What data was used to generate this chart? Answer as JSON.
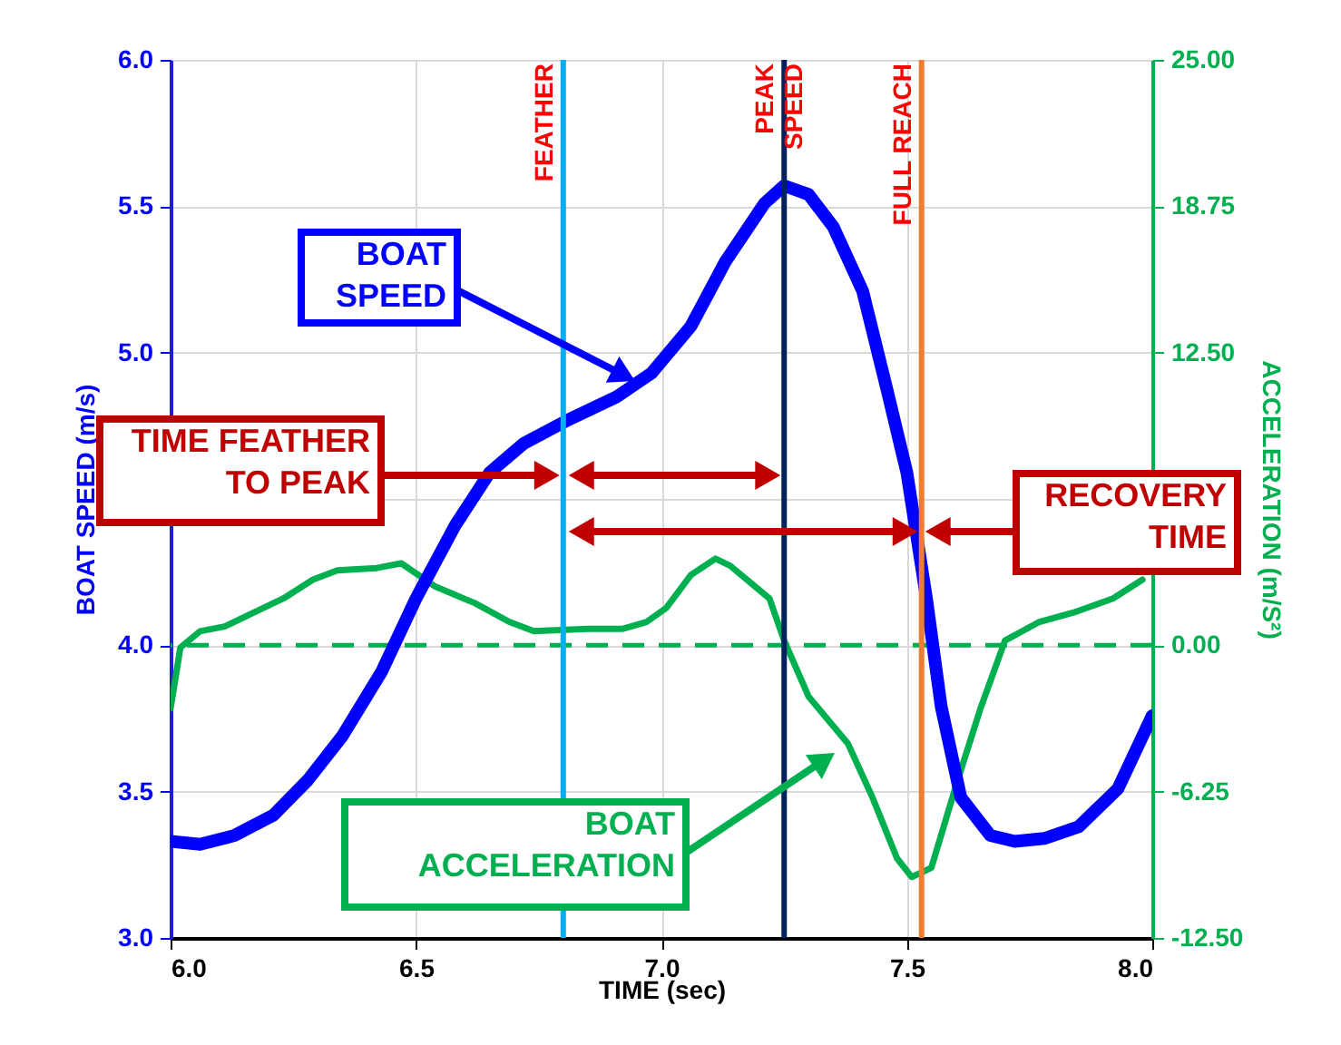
{
  "chart_data": {
    "type": "line",
    "xlabel": "TIME (sec)",
    "ylabel": "BOAT SPEED (m/s)",
    "y2label": "ACCELERATION  (m/S²)",
    "xlim": [
      6,
      8
    ],
    "xticks": [
      {
        "value": 6,
        "label": "6.0"
      },
      {
        "value": 6.5,
        "label": "6.5"
      },
      {
        "value": 7,
        "label": "7.0"
      },
      {
        "value": 7.5,
        "label": "7.5"
      },
      {
        "value": 8,
        "label": "8.0"
      }
    ],
    "ylim": [
      3,
      6
    ],
    "yticks": [
      {
        "value": 3,
        "label": "3.0"
      },
      {
        "value": 3.5,
        "label": "3.5"
      },
      {
        "value": 4,
        "label": "4.0"
      },
      {
        "value": 4.5,
        "label": null
      },
      {
        "value": 5,
        "label": "5.0"
      },
      {
        "value": 5.5,
        "label": "5.5"
      },
      {
        "value": 6,
        "label": "6.0"
      }
    ],
    "y2lim": [
      -12.5,
      25
    ],
    "y2ticks": [
      {
        "value": -12.5,
        "label": "-12.50"
      },
      {
        "value": -6.25,
        "label": "-6.25"
      },
      {
        "value": 0,
        "label": "0.00"
      },
      {
        "value": 6.25,
        "label": null
      },
      {
        "value": 12.5,
        "label": "12.50"
      },
      {
        "value": 18.75,
        "label": "18.75"
      },
      {
        "value": 25,
        "label": "25.00"
      }
    ],
    "grid": true,
    "series": [
      {
        "name": "BOAT SPEED",
        "color": "#0000ff",
        "x": [
          6.0,
          6.06,
          6.13,
          6.21,
          6.28,
          6.35,
          6.43,
          6.5,
          6.58,
          6.65,
          6.72,
          6.81,
          6.91,
          6.98,
          7.06,
          7.13,
          7.21,
          7.25,
          7.3,
          7.35,
          7.41,
          7.46,
          7.5,
          7.54,
          7.57,
          7.61,
          7.67,
          7.72,
          7.78,
          7.85,
          7.93,
          8.0
        ],
        "values": [
          3.33,
          3.32,
          3.35,
          3.42,
          3.54,
          3.69,
          3.91,
          4.16,
          4.41,
          4.59,
          4.69,
          4.77,
          4.85,
          4.93,
          5.09,
          5.31,
          5.51,
          5.57,
          5.54,
          5.43,
          5.21,
          4.87,
          4.59,
          4.16,
          3.79,
          3.48,
          3.35,
          3.33,
          3.34,
          3.38,
          3.51,
          3.76
        ]
      },
      {
        "name": "BOAT ACCELERATION",
        "color": "#00b050",
        "axis": "y2",
        "x": [
          6.0,
          6.02,
          6.06,
          6.11,
          6.17,
          6.23,
          6.29,
          6.34,
          6.42,
          6.47,
          6.54,
          6.62,
          6.69,
          6.74,
          6.85,
          6.92,
          6.97,
          7.01,
          7.06,
          7.11,
          7.14,
          7.22,
          7.25,
          7.3,
          7.38,
          7.43,
          7.48,
          7.51,
          7.55,
          7.6,
          7.65,
          7.7,
          7.77,
          7.84,
          7.92,
          7.98
        ],
        "values": [
          -2.7,
          -0.1,
          0.6,
          0.8,
          1.4,
          2.0,
          2.8,
          3.2,
          3.3,
          3.5,
          2.5,
          1.8,
          1.0,
          0.6,
          0.7,
          0.7,
          1.0,
          1.6,
          3.0,
          3.7,
          3.4,
          2.0,
          0.2,
          -2.2,
          -4.2,
          -6.5,
          -9.1,
          -9.9,
          -9.5,
          -6.0,
          -2.7,
          0.2,
          1.0,
          1.4,
          2.0,
          2.8
        ]
      }
    ],
    "ref_lines": [
      {
        "axis": "x",
        "value": 6.8,
        "label": "FEATHER",
        "color": "#00b0f0"
      },
      {
        "axis": "x",
        "value": 7.25,
        "label": "PEAK SPEED",
        "color": "#002060"
      },
      {
        "axis": "x",
        "value": 7.53,
        "label": "FULL REACH",
        "color": "#ed7d31"
      },
      {
        "axis": "y2",
        "value": 0,
        "color": "#00b050",
        "line_style": "dashed"
      }
    ],
    "annotations": [
      "TIME FEATHER TO PEAK",
      "RECOVERY TIME"
    ]
  }
}
